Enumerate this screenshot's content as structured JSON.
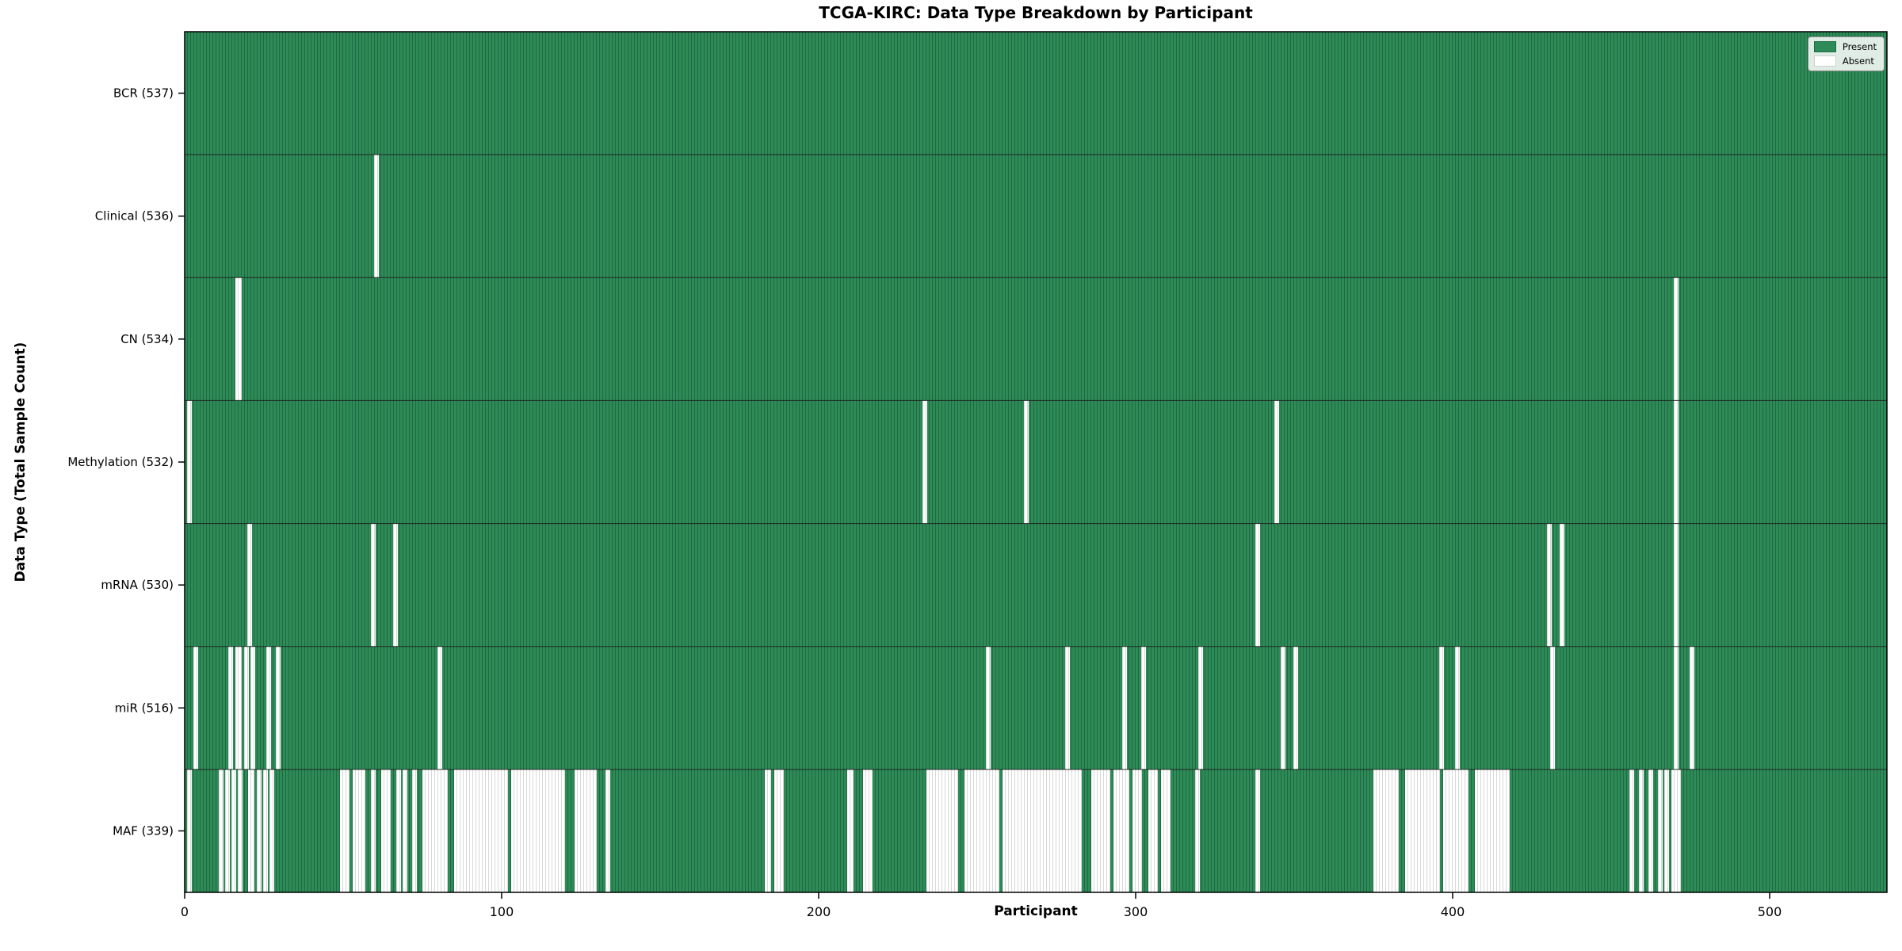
{
  "chart_data": {
    "type": "heatmap",
    "title": "TCGA-KIRC: Data Type Breakdown by Participant",
    "xlabel": "Participant",
    "ylabel": "Data Type (Total Sample Count)",
    "x_ticks": [
      0,
      100,
      200,
      300,
      400,
      500
    ],
    "x_range": [
      0,
      537
    ],
    "n_participants": 537,
    "legend": [
      "Present",
      "Absent"
    ],
    "legend_position": "upper right",
    "grid": false,
    "colors": {
      "present": "#2E8B57",
      "present_edge": "#1E6A42",
      "absent": "#FFFFFF",
      "absent_edge": "#D9D9D9",
      "row_separator": "#1A1A1A",
      "frame": "#000000"
    },
    "rows": [
      {
        "label": "BCR (537)",
        "data_type": "BCR",
        "total": 537,
        "absent_ranges": []
      },
      {
        "label": "Clinical (536)",
        "data_type": "Clinical",
        "total": 536,
        "absent_ranges": [
          [
            60,
            60
          ]
        ]
      },
      {
        "label": "CN (534)",
        "data_type": "CN",
        "total": 534,
        "absent_ranges": [
          [
            16,
            17
          ],
          [
            470,
            470
          ]
        ]
      },
      {
        "label": "Methylation (532)",
        "data_type": "Methylation",
        "total": 532,
        "absent_ranges": [
          [
            1,
            1
          ],
          [
            233,
            233
          ],
          [
            265,
            265
          ],
          [
            344,
            344
          ],
          [
            470,
            470
          ]
        ]
      },
      {
        "label": "mRNA (530)",
        "data_type": "mRNA",
        "total": 530,
        "absent_ranges": [
          [
            20,
            20
          ],
          [
            59,
            59
          ],
          [
            66,
            66
          ],
          [
            338,
            338
          ],
          [
            430,
            430
          ],
          [
            434,
            434
          ],
          [
            470,
            470
          ]
        ]
      },
      {
        "label": "miR (516)",
        "data_type": "miR",
        "total": 516,
        "absent_ranges": [
          [
            3,
            3
          ],
          [
            14,
            14
          ],
          [
            16,
            17
          ],
          [
            19,
            19
          ],
          [
            21,
            21
          ],
          [
            26,
            26
          ],
          [
            29,
            29
          ],
          [
            80,
            80
          ],
          [
            253,
            253
          ],
          [
            278,
            278
          ],
          [
            296,
            296
          ],
          [
            302,
            302
          ],
          [
            320,
            320
          ],
          [
            346,
            346
          ],
          [
            350,
            350
          ],
          [
            396,
            396
          ],
          [
            401,
            401
          ],
          [
            431,
            431
          ],
          [
            470,
            470
          ],
          [
            475,
            475
          ]
        ]
      },
      {
        "label": "MAF (339)",
        "data_type": "MAF",
        "total": 339,
        "absent_ranges": [
          [
            1,
            1
          ],
          [
            11,
            11
          ],
          [
            13,
            13
          ],
          [
            15,
            15
          ],
          [
            17,
            17
          ],
          [
            20,
            21
          ],
          [
            23,
            23
          ],
          [
            25,
            25
          ],
          [
            27,
            27
          ],
          [
            49,
            51
          ],
          [
            53,
            56
          ],
          [
            59,
            59
          ],
          [
            62,
            64
          ],
          [
            67,
            67
          ],
          [
            69,
            69
          ],
          [
            72,
            72
          ],
          [
            75,
            82
          ],
          [
            85,
            101
          ],
          [
            103,
            119
          ],
          [
            123,
            129
          ],
          [
            133,
            133
          ],
          [
            183,
            184
          ],
          [
            186,
            188
          ],
          [
            209,
            210
          ],
          [
            214,
            216
          ],
          [
            234,
            243
          ],
          [
            246,
            256
          ],
          [
            258,
            282
          ],
          [
            286,
            291
          ],
          [
            293,
            297
          ],
          [
            299,
            301
          ],
          [
            304,
            306
          ],
          [
            308,
            310
          ],
          [
            319,
            319
          ],
          [
            338,
            338
          ],
          [
            375,
            382
          ],
          [
            385,
            395
          ],
          [
            397,
            404
          ],
          [
            407,
            417
          ],
          [
            456,
            456
          ],
          [
            459,
            459
          ],
          [
            462,
            462
          ],
          [
            465,
            465
          ],
          [
            467,
            467
          ],
          [
            469,
            471
          ]
        ]
      }
    ]
  }
}
